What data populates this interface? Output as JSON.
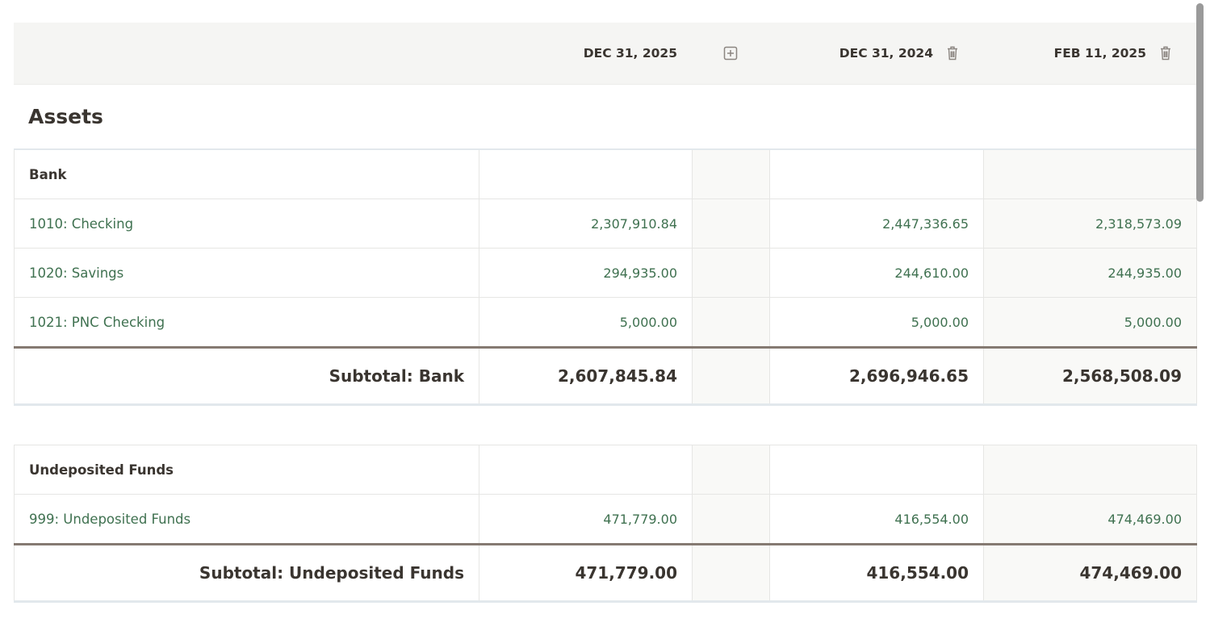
{
  "header": {
    "dates": [
      "DEC 31, 2025",
      "DEC 31, 2024",
      "FEB 11, 2025"
    ],
    "icons": {
      "add": "add-column-icon",
      "delete": "trash-icon"
    }
  },
  "section": {
    "title": "Assets"
  },
  "groups": [
    {
      "name": "Bank",
      "accounts": [
        {
          "label": "1010: Checking",
          "v1": "2,307,910.84",
          "v2": "2,447,336.65",
          "v3": "2,318,573.09"
        },
        {
          "label": "1020: Savings",
          "v1": "294,935.00",
          "v2": "244,610.00",
          "v3": "244,935.00"
        },
        {
          "label": "1021: PNC Checking",
          "v1": "5,000.00",
          "v2": "5,000.00",
          "v3": "5,000.00"
        }
      ],
      "subtotal": {
        "label": "Subtotal: Bank",
        "v1": "2,607,845.84",
        "v2": "2,696,946.65",
        "v3": "2,568,508.09"
      }
    },
    {
      "name": "Undeposited Funds",
      "accounts": [
        {
          "label": "999: Undeposited Funds",
          "v1": "471,779.00",
          "v2": "416,554.00",
          "v3": "474,469.00"
        }
      ],
      "subtotal": {
        "label": "Subtotal: Undeposited Funds",
        "v1": "471,779.00",
        "v2": "416,554.00",
        "v3": "474,469.00"
      }
    }
  ],
  "colors": {
    "account_text": "#3f7150",
    "header_bg": "#f5f5f3",
    "subtotal_rule": "#857a72"
  }
}
